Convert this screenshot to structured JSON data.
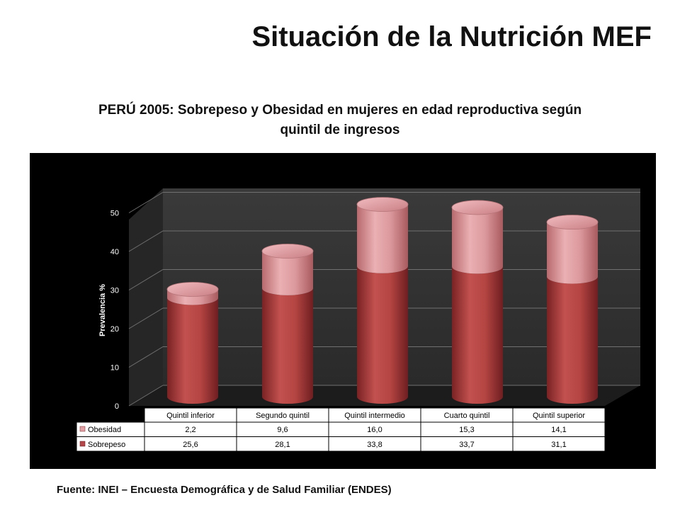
{
  "slide": {
    "title": "Situación de la Nutrición MEF",
    "subtitle_line1": "PERÚ 2005: Sobrepeso y Obesidad en mujeres en edad reproductiva según",
    "subtitle_line2": "quintil de ingresos",
    "source": "Fuente: INEI – Encuesta Demográfica y de Salud Familiar (ENDES)"
  },
  "chart_data": {
    "type": "bar",
    "stacked": true,
    "style": "3d-cylinder",
    "title": "PERÚ 2005: Sobrepeso y Obesidad en mujeres en edad reproductiva según quintil de ingresos",
    "categories": [
      "Quintil inferior",
      "Segundo quintil",
      "Quintil intermedio",
      "Cuarto quintil",
      "Quintil superior"
    ],
    "series": [
      {
        "name": "Sobrepeso",
        "values": [
          25.6,
          28.1,
          33.8,
          33.7,
          31.1
        ],
        "labels": [
          "25,6",
          "28,1",
          "33,8",
          "33,7",
          "31,1"
        ],
        "color": "#b5474a"
      },
      {
        "name": "Obesidad",
        "values": [
          2.2,
          9.6,
          16.0,
          15.3,
          14.1
        ],
        "labels": [
          "2,2",
          "9,6",
          "16,0",
          "15,3",
          "14,1"
        ],
        "color": "#e3a1a5"
      }
    ],
    "ylabel": "Prevalencia %",
    "xlabel": "",
    "ylim": [
      0,
      50
    ],
    "yticks": [
      0,
      10,
      20,
      30,
      40,
      50
    ],
    "grid": true,
    "legend": "data-table",
    "background": "#000000"
  }
}
